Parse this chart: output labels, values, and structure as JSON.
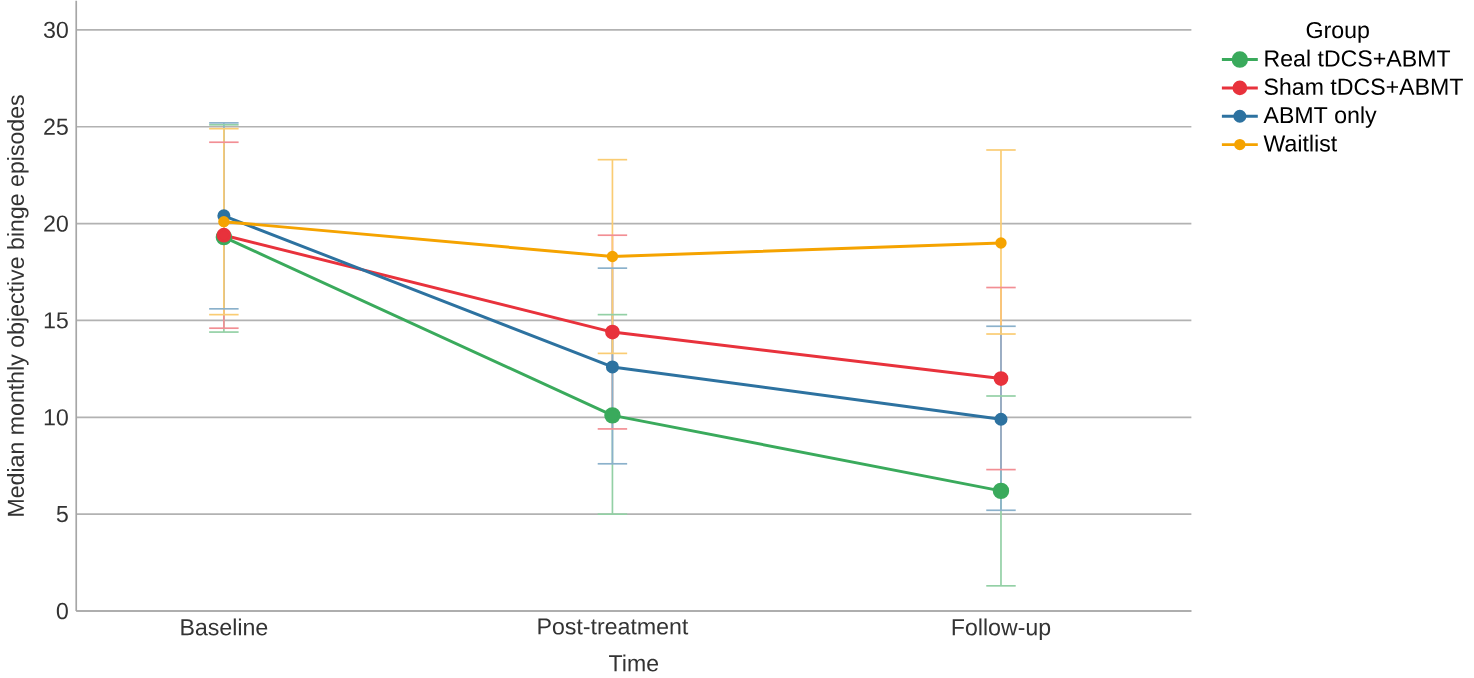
{
  "chart_data": {
    "type": "line",
    "xlabel": "Time",
    "ylabel": "Median monthly objective binge episodes",
    "legend_title": "Group",
    "categories": [
      "Baseline",
      "Post-treatment",
      "Follow-up"
    ],
    "series": [
      {
        "name": "Real tDCS+ABMT",
        "color": "#3aaa5c",
        "values": [
          19.3,
          10.1,
          6.2
        ],
        "errors": [
          [
            14.4,
            25.1
          ],
          [
            5.0,
            15.3
          ],
          [
            1.3,
            11.1
          ]
        ]
      },
      {
        "name": "Sham tDCS+ABMT",
        "color": "#e8323c",
        "values": [
          19.4,
          14.4,
          12.0
        ],
        "errors": [
          [
            14.6,
            24.2
          ],
          [
            9.4,
            19.4
          ],
          [
            7.3,
            16.7
          ]
        ]
      },
      {
        "name": "ABMT only",
        "color": "#2d72a0",
        "values": [
          20.4,
          12.6,
          9.9
        ],
        "errors": [
          [
            15.6,
            25.2
          ],
          [
            7.6,
            17.7
          ],
          [
            5.2,
            14.7
          ]
        ]
      },
      {
        "name": "Waitlist",
        "color": "#f5a300",
        "values": [
          20.1,
          18.3,
          19.0
        ],
        "errors": [
          [
            15.3,
            24.9
          ],
          [
            13.3,
            23.3
          ],
          [
            14.3,
            23.8
          ]
        ]
      }
    ],
    "ylim": [
      0,
      31.5
    ],
    "yticks": [
      0,
      5,
      10,
      15,
      20,
      25,
      30
    ],
    "grid": "y",
    "legend": "right",
    "marker": "circle",
    "line_style": "solid"
  }
}
